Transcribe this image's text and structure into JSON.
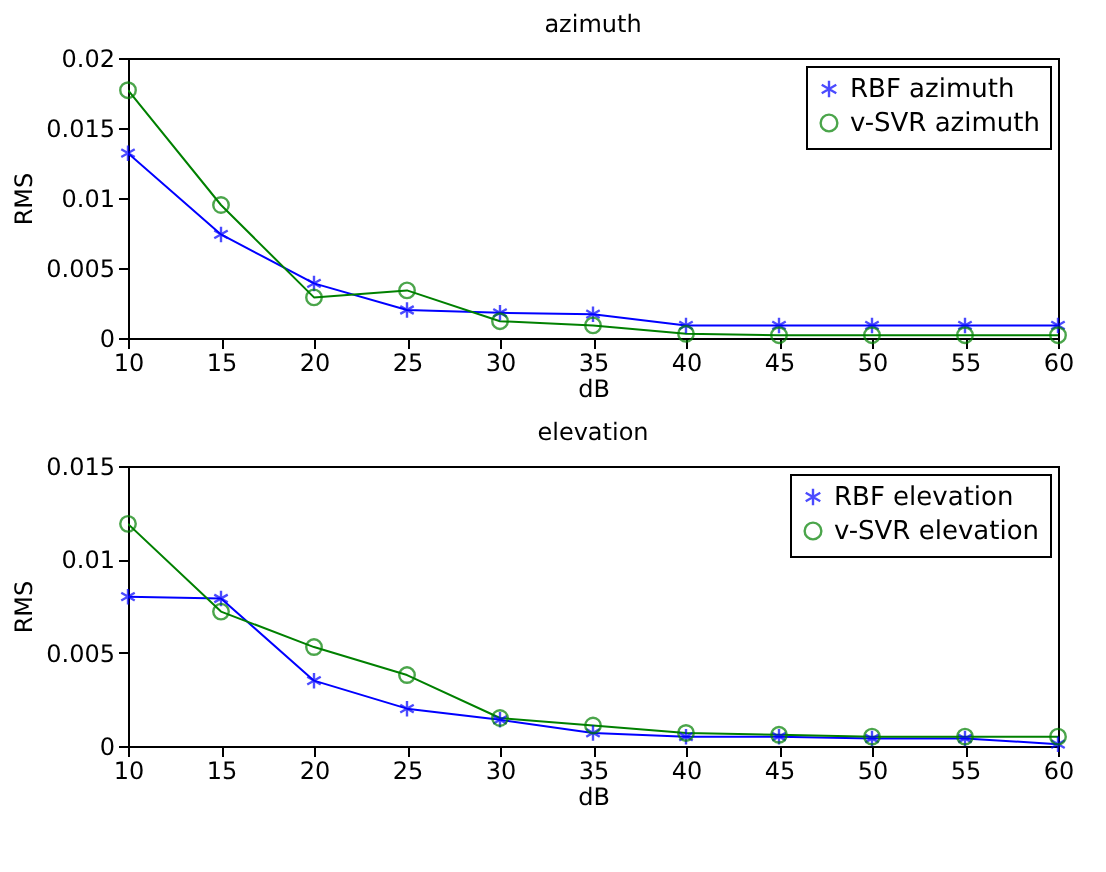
{
  "chart_data": [
    {
      "type": "line",
      "title": "azimuth",
      "xlabel": "dB",
      "ylabel": "RMS",
      "x": [
        10,
        15,
        20,
        25,
        30,
        35,
        40,
        45,
        50,
        55,
        60
      ],
      "xlim": [
        10,
        60
      ],
      "xticks": [
        10,
        15,
        20,
        25,
        30,
        35,
        40,
        45,
        50,
        55,
        60
      ],
      "ylim": [
        0,
        0.02
      ],
      "yticks": [
        0,
        0.005,
        0.01,
        0.015,
        0.02
      ],
      "grid": false,
      "legend": "top right",
      "series": [
        {
          "name": "RBF azimuth",
          "color": "#0000ff",
          "marker": "cross",
          "values": [
            0.0132,
            0.0074,
            0.0039,
            0.002,
            0.0018,
            0.0017,
            0.0009,
            0.0009,
            0.0009,
            0.0009,
            0.0009
          ]
        },
        {
          "name": "v-SVR azimuth",
          "color": "#008000",
          "marker": "circle",
          "values": [
            0.0177,
            0.0095,
            0.0029,
            0.0034,
            0.0012,
            0.0009,
            0.0003,
            0.0002,
            0.0002,
            0.0002,
            0.0002
          ]
        }
      ]
    },
    {
      "type": "line",
      "title": "elevation",
      "xlabel": "dB",
      "ylabel": "RMS",
      "x": [
        10,
        15,
        20,
        25,
        30,
        35,
        40,
        45,
        50,
        55,
        60
      ],
      "xlim": [
        10,
        60
      ],
      "xticks": [
        10,
        15,
        20,
        25,
        30,
        35,
        40,
        45,
        50,
        55,
        60
      ],
      "ylim": [
        0,
        0.015
      ],
      "yticks": [
        0,
        0.005,
        0.01,
        0.015
      ],
      "grid": false,
      "legend": "top right",
      "series": [
        {
          "name": "RBF elevation",
          "color": "#0000ff",
          "marker": "cross",
          "values": [
            0.008,
            0.0079,
            0.0035,
            0.002,
            0.0014,
            0.0007,
            0.0005,
            0.0005,
            0.0004,
            0.0004,
            0.0001
          ]
        },
        {
          "name": "v-SVR elevation",
          "color": "#008000",
          "marker": "circle",
          "values": [
            0.0119,
            0.0072,
            0.0053,
            0.0038,
            0.0015,
            0.0011,
            0.0007,
            0.0006,
            0.0005,
            0.0005,
            0.0005
          ]
        }
      ]
    }
  ]
}
